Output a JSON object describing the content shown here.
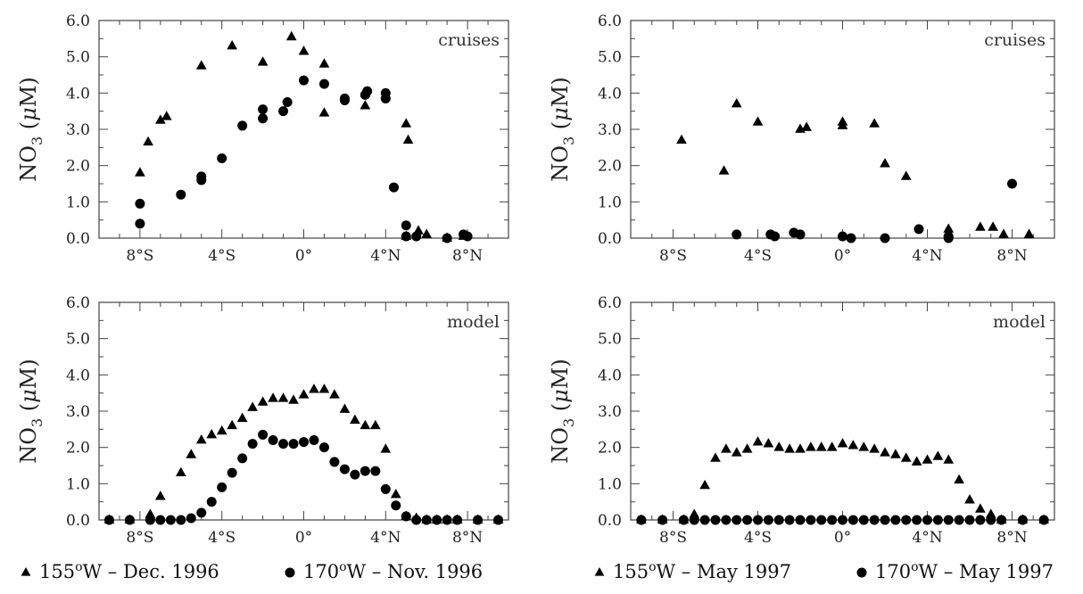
{
  "figure": {
    "legends": [
      {
        "items": [
          {
            "marker": "triangle",
            "text_pre": "155",
            "sup": "o",
            "text_post": "W  –  Dec. 1996"
          },
          {
            "marker": "circle",
            "text_pre": "170",
            "sup": "o",
            "text_post": "W  –  Nov. 1996"
          }
        ]
      },
      {
        "items": [
          {
            "marker": "triangle",
            "text_pre": "155",
            "sup": "o",
            "text_post": "W  –  May 1997"
          },
          {
            "marker": "circle",
            "text_pre": "170",
            "sup": "o",
            "text_post": "W  –  May 1997"
          }
        ]
      }
    ]
  },
  "chart_data": [
    {
      "type": "scatter",
      "panel_label": "cruises",
      "ylabel": "NO3 (µM)",
      "ylabel_parts": {
        "main": "NO",
        "sub": "3",
        "rest": " (",
        "mu": "μ",
        "unit": "M)"
      },
      "xlim": [
        -10,
        10
      ],
      "ylim": [
        0,
        6
      ],
      "x_ticks": [
        -8,
        -4,
        0,
        4,
        8
      ],
      "x_tick_labels": [
        "8°S",
        "4°S",
        "0°",
        "4°N",
        "8°N"
      ],
      "y_ticks": [
        0,
        1,
        2,
        3,
        4,
        5,
        6
      ],
      "y_tick_labels": [
        "0.0",
        "1.0",
        "2.0",
        "3.0",
        "4.0",
        "5.0",
        "6.0"
      ],
      "grid": false,
      "series": [
        {
          "marker": "triangle",
          "points": [
            [
              -8.0,
              1.8
            ],
            [
              -7.6,
              2.65
            ],
            [
              -7.0,
              3.25
            ],
            [
              -6.7,
              3.35
            ],
            [
              -5.0,
              4.75
            ],
            [
              -3.5,
              5.3
            ],
            [
              -2.0,
              4.85
            ],
            [
              -0.6,
              5.55
            ],
            [
              0.0,
              5.15
            ],
            [
              1.0,
              4.8
            ],
            [
              1.0,
              3.45
            ],
            [
              3.0,
              3.65
            ],
            [
              3.0,
              4.0
            ],
            [
              4.0,
              3.95
            ],
            [
              5.0,
              3.15
            ],
            [
              5.1,
              2.7
            ],
            [
              5.6,
              0.2
            ],
            [
              6.0,
              0.1
            ],
            [
              5.0,
              0.05
            ],
            [
              7.0,
              0.0
            ],
            [
              7.8,
              0.05
            ]
          ]
        },
        {
          "marker": "circle",
          "points": [
            [
              -8.0,
              0.95
            ],
            [
              -8.0,
              0.4
            ],
            [
              -6.0,
              1.2
            ],
            [
              -5.0,
              1.7
            ],
            [
              -5.0,
              1.6
            ],
            [
              -4.0,
              2.2
            ],
            [
              -3.0,
              3.1
            ],
            [
              -2.0,
              3.3
            ],
            [
              -2.0,
              3.55
            ],
            [
              -1.0,
              3.5
            ],
            [
              -0.8,
              3.75
            ],
            [
              0.0,
              4.35
            ],
            [
              1.0,
              4.25
            ],
            [
              2.0,
              3.8
            ],
            [
              2.0,
              3.85
            ],
            [
              3.0,
              3.95
            ],
            [
              3.1,
              4.05
            ],
            [
              4.0,
              4.0
            ],
            [
              4.0,
              3.85
            ],
            [
              4.4,
              1.4
            ],
            [
              5.0,
              0.35
            ],
            [
              5.0,
              0.05
            ],
            [
              5.5,
              0.05
            ],
            [
              7.0,
              0.0
            ],
            [
              7.8,
              0.1
            ],
            [
              8.0,
              0.05
            ]
          ]
        }
      ]
    },
    {
      "type": "scatter",
      "panel_label": "cruises",
      "ylabel": "NO3 (µM)",
      "ylabel_parts": {
        "main": "NO",
        "sub": "3",
        "rest": " (",
        "mu": "μ",
        "unit": "M)"
      },
      "xlim": [
        -10,
        10
      ],
      "ylim": [
        0,
        6
      ],
      "x_ticks": [
        -8,
        -4,
        0,
        4,
        8
      ],
      "x_tick_labels": [
        "8°S",
        "4°S",
        "0°",
        "4°N",
        "8°N"
      ],
      "y_ticks": [
        0,
        1,
        2,
        3,
        4,
        5,
        6
      ],
      "y_tick_labels": [
        "0.0",
        "1.0",
        "2.0",
        "3.0",
        "4.0",
        "5.0",
        "6.0"
      ],
      "grid": false,
      "series": [
        {
          "marker": "triangle",
          "points": [
            [
              -7.6,
              2.7
            ],
            [
              -5.6,
              1.85
            ],
            [
              -5.0,
              3.7
            ],
            [
              -4.0,
              3.2
            ],
            [
              -2.0,
              3.0
            ],
            [
              -1.7,
              3.05
            ],
            [
              0.0,
              3.1
            ],
            [
              0.0,
              3.2
            ],
            [
              1.5,
              3.15
            ],
            [
              2.0,
              2.05
            ],
            [
              3.0,
              1.7
            ],
            [
              5.0,
              0.25
            ],
            [
              5.0,
              0.15
            ],
            [
              6.5,
              0.3
            ],
            [
              7.1,
              0.3
            ],
            [
              7.6,
              0.1
            ],
            [
              8.8,
              0.1
            ]
          ]
        },
        {
          "marker": "circle",
          "points": [
            [
              -5.0,
              0.1
            ],
            [
              -3.4,
              0.1
            ],
            [
              -3.2,
              0.05
            ],
            [
              -2.3,
              0.15
            ],
            [
              -2.0,
              0.1
            ],
            [
              0.0,
              0.05
            ],
            [
              0.4,
              0.0
            ],
            [
              2.0,
              0.0
            ],
            [
              3.6,
              0.25
            ],
            [
              5.0,
              0.05
            ],
            [
              5.0,
              0.0
            ],
            [
              8.0,
              1.5
            ]
          ]
        }
      ]
    },
    {
      "type": "scatter",
      "panel_label": "model",
      "ylabel": "NO3 (µM)",
      "ylabel_parts": {
        "main": "NO",
        "sub": "3",
        "rest": " (",
        "mu": "μ",
        "unit": "M)"
      },
      "xlim": [
        -10,
        10
      ],
      "ylim": [
        0,
        6
      ],
      "x_ticks": [
        -8,
        -4,
        0,
        4,
        8
      ],
      "x_tick_labels": [
        "8°S",
        "4°S",
        "0°",
        "4°N",
        "8°N"
      ],
      "y_ticks": [
        0,
        1,
        2,
        3,
        4,
        5,
        6
      ],
      "y_tick_labels": [
        "0.0",
        "1.0",
        "2.0",
        "3.0",
        "4.0",
        "5.0",
        "6.0"
      ],
      "grid": false,
      "series": [
        {
          "marker": "triangle",
          "points": [
            [
              -9.5,
              0.0
            ],
            [
              -8.5,
              0.0
            ],
            [
              -7.5,
              0.15
            ],
            [
              -7.0,
              0.65
            ],
            [
              -6.0,
              1.3
            ],
            [
              -5.5,
              1.8
            ],
            [
              -5.0,
              2.2
            ],
            [
              -4.5,
              2.35
            ],
            [
              -4.0,
              2.45
            ],
            [
              -3.5,
              2.6
            ],
            [
              -3.0,
              2.8
            ],
            [
              -2.5,
              3.1
            ],
            [
              -2.0,
              3.25
            ],
            [
              -1.5,
              3.35
            ],
            [
              -1.0,
              3.35
            ],
            [
              -0.5,
              3.3
            ],
            [
              0.0,
              3.45
            ],
            [
              0.5,
              3.6
            ],
            [
              1.0,
              3.6
            ],
            [
              1.5,
              3.45
            ],
            [
              2.0,
              3.05
            ],
            [
              2.5,
              2.75
            ],
            [
              3.0,
              2.6
            ],
            [
              3.5,
              2.6
            ],
            [
              4.0,
              1.95
            ],
            [
              4.5,
              0.7
            ],
            [
              5.0,
              0.1
            ],
            [
              5.5,
              0.05
            ],
            [
              6.0,
              0.0
            ],
            [
              6.5,
              0.0
            ],
            [
              7.0,
              0.0
            ],
            [
              7.5,
              0.0
            ],
            [
              8.5,
              0.0
            ],
            [
              9.5,
              0.0
            ]
          ]
        },
        {
          "marker": "circle",
          "points": [
            [
              -9.5,
              0.0
            ],
            [
              -8.5,
              0.0
            ],
            [
              -7.5,
              0.0
            ],
            [
              -7.0,
              0.0
            ],
            [
              -6.5,
              0.0
            ],
            [
              -6.0,
              0.0
            ],
            [
              -5.5,
              0.05
            ],
            [
              -5.0,
              0.2
            ],
            [
              -4.5,
              0.5
            ],
            [
              -4.0,
              0.9
            ],
            [
              -3.5,
              1.3
            ],
            [
              -3.0,
              1.7
            ],
            [
              -2.5,
              2.1
            ],
            [
              -2.0,
              2.35
            ],
            [
              -1.5,
              2.2
            ],
            [
              -1.0,
              2.1
            ],
            [
              -0.5,
              2.1
            ],
            [
              0.0,
              2.15
            ],
            [
              0.5,
              2.2
            ],
            [
              1.0,
              2.0
            ],
            [
              1.5,
              1.6
            ],
            [
              2.0,
              1.4
            ],
            [
              2.5,
              1.25
            ],
            [
              3.0,
              1.35
            ],
            [
              3.5,
              1.35
            ],
            [
              4.0,
              0.85
            ],
            [
              4.5,
              0.4
            ],
            [
              5.0,
              0.1
            ],
            [
              5.5,
              0.0
            ],
            [
              6.0,
              0.0
            ],
            [
              6.5,
              0.0
            ],
            [
              7.0,
              0.0
            ],
            [
              7.5,
              0.0
            ],
            [
              8.5,
              0.0
            ],
            [
              9.5,
              0.0
            ]
          ]
        }
      ]
    },
    {
      "type": "scatter",
      "panel_label": "model",
      "ylabel": "NO3 (µM)",
      "ylabel_parts": {
        "main": "NO",
        "sub": "3",
        "rest": " (",
        "mu": "μ",
        "unit": "M)"
      },
      "xlim": [
        -10,
        10
      ],
      "ylim": [
        0,
        6
      ],
      "x_ticks": [
        -8,
        -4,
        0,
        4,
        8
      ],
      "x_tick_labels": [
        "8°S",
        "4°S",
        "0°",
        "4°N",
        "8°N"
      ],
      "y_ticks": [
        0,
        1,
        2,
        3,
        4,
        5,
        6
      ],
      "y_tick_labels": [
        "0.0",
        "1.0",
        "2.0",
        "3.0",
        "4.0",
        "5.0",
        "6.0"
      ],
      "grid": false,
      "series": [
        {
          "marker": "triangle",
          "points": [
            [
              -9.5,
              0.0
            ],
            [
              -8.5,
              0.0
            ],
            [
              -7.5,
              0.0
            ],
            [
              -7.0,
              0.15
            ],
            [
              -6.5,
              0.95
            ],
            [
              -6.0,
              1.7
            ],
            [
              -5.5,
              1.95
            ],
            [
              -5.0,
              1.85
            ],
            [
              -4.5,
              1.95
            ],
            [
              -4.0,
              2.15
            ],
            [
              -3.5,
              2.1
            ],
            [
              -3.0,
              2.0
            ],
            [
              -2.5,
              1.95
            ],
            [
              -2.0,
              1.95
            ],
            [
              -1.5,
              2.0
            ],
            [
              -1.0,
              2.0
            ],
            [
              -0.5,
              2.0
            ],
            [
              0.0,
              2.1
            ],
            [
              0.5,
              2.05
            ],
            [
              1.0,
              2.0
            ],
            [
              1.5,
              1.95
            ],
            [
              2.0,
              1.85
            ],
            [
              2.5,
              1.8
            ],
            [
              3.0,
              1.7
            ],
            [
              3.5,
              1.6
            ],
            [
              4.0,
              1.65
            ],
            [
              4.5,
              1.75
            ],
            [
              5.0,
              1.65
            ],
            [
              5.5,
              1.1
            ],
            [
              6.0,
              0.55
            ],
            [
              6.5,
              0.3
            ],
            [
              7.0,
              0.15
            ],
            [
              7.5,
              0.0
            ],
            [
              8.5,
              0.0
            ],
            [
              9.5,
              0.0
            ]
          ]
        },
        {
          "marker": "circle",
          "points": [
            [
              -9.5,
              0.0
            ],
            [
              -8.5,
              0.0
            ],
            [
              -7.5,
              0.0
            ],
            [
              -7.0,
              0.0
            ],
            [
              -6.5,
              0.0
            ],
            [
              -6.0,
              0.0
            ],
            [
              -5.5,
              0.0
            ],
            [
              -5.0,
              0.0
            ],
            [
              -4.5,
              0.0
            ],
            [
              -4.0,
              0.0
            ],
            [
              -3.5,
              0.0
            ],
            [
              -3.0,
              0.0
            ],
            [
              -2.5,
              0.0
            ],
            [
              -2.0,
              0.0
            ],
            [
              -1.5,
              0.0
            ],
            [
              -1.0,
              0.0
            ],
            [
              -0.5,
              0.0
            ],
            [
              0.0,
              0.0
            ],
            [
              0.5,
              0.0
            ],
            [
              1.0,
              0.0
            ],
            [
              1.5,
              0.0
            ],
            [
              2.0,
              0.0
            ],
            [
              2.5,
              0.0
            ],
            [
              3.0,
              0.0
            ],
            [
              3.5,
              0.0
            ],
            [
              4.0,
              0.0
            ],
            [
              4.5,
              0.0
            ],
            [
              5.0,
              0.0
            ],
            [
              5.5,
              0.0
            ],
            [
              6.0,
              0.0
            ],
            [
              6.5,
              0.0
            ],
            [
              7.0,
              0.0
            ],
            [
              7.5,
              0.0
            ],
            [
              8.5,
              0.0
            ],
            [
              9.5,
              0.0
            ]
          ]
        }
      ]
    }
  ]
}
